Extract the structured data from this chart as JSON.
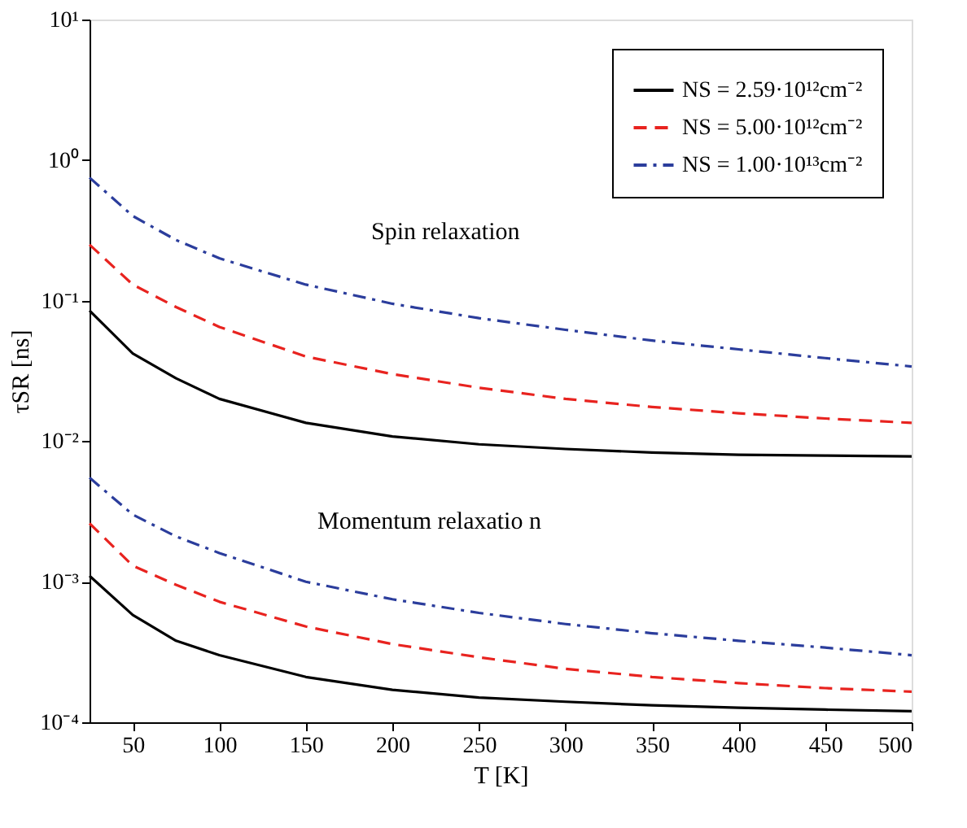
{
  "chart_data": {
    "type": "line",
    "xlabel": "T [K]",
    "ylabel": "τSR [ns]",
    "x": [
      25,
      50,
      75,
      100,
      150,
      200,
      250,
      300,
      350,
      400,
      450,
      500
    ],
    "series": [
      {
        "name": "NS = 2.59·10¹²cm⁻²",
        "color": "#000000",
        "line_style": "solid",
        "values": [
          0.085,
          0.042,
          0.028,
          0.02,
          0.0135,
          0.0108,
          0.0095,
          0.0088,
          0.0083,
          0.008,
          0.0079,
          0.0078
        ]
      },
      {
        "name": "NS = 5.00·10¹²cm⁻²",
        "color": "#e8231f",
        "line_style": "dashed",
        "values": [
          0.25,
          0.13,
          0.09,
          0.065,
          0.04,
          0.03,
          0.024,
          0.02,
          0.0175,
          0.0158,
          0.0145,
          0.0135
        ]
      },
      {
        "name": "NS = 1.00·10¹³cm⁻²",
        "color": "#2b3d9c",
        "line_style": "dashdot",
        "values": [
          0.75,
          0.4,
          0.27,
          0.2,
          0.13,
          0.095,
          0.075,
          0.062,
          0.052,
          0.045,
          0.039,
          0.034
        ]
      },
      {
        "color": "#000000",
        "line_style": "solid",
        "values": [
          0.0011,
          0.00058,
          0.00038,
          0.0003,
          0.00021,
          0.00017,
          0.00015,
          0.00014,
          0.000132,
          0.000127,
          0.000123,
          0.00012
        ]
      },
      {
        "color": "#e8231f",
        "line_style": "dashed",
        "values": [
          0.0026,
          0.0013,
          0.00095,
          0.00072,
          0.00048,
          0.00036,
          0.00029,
          0.00024,
          0.00021,
          0.00019,
          0.000175,
          0.000165
        ]
      },
      {
        "color": "#2b3d9c",
        "line_style": "dashdot",
        "values": [
          0.0055,
          0.003,
          0.0021,
          0.0016,
          0.001,
          0.00075,
          0.0006,
          0.0005,
          0.00043,
          0.00038,
          0.00034,
          0.0003
        ]
      }
    ],
    "xlim": [
      25,
      500
    ],
    "xticks": [
      50,
      100,
      150,
      200,
      250,
      300,
      350,
      400,
      450,
      500
    ],
    "ylim": [
      0.0001,
      10
    ],
    "log": true,
    "yticks": [
      {
        "value": 0.0001,
        "label": "10⁻⁴"
      },
      {
        "value": 0.001,
        "label": "10⁻³"
      },
      {
        "value": 0.01,
        "label": "10⁻²"
      },
      {
        "value": 0.1,
        "label": "10⁻¹"
      },
      {
        "value": 1,
        "label": "10⁰"
      },
      {
        "value": 10,
        "label": "10¹"
      }
    ],
    "annotations": [
      "Spin relaxation",
      "Momentum relaxatio n"
    ],
    "grid": false,
    "legend": "top right",
    "marker": "none"
  }
}
